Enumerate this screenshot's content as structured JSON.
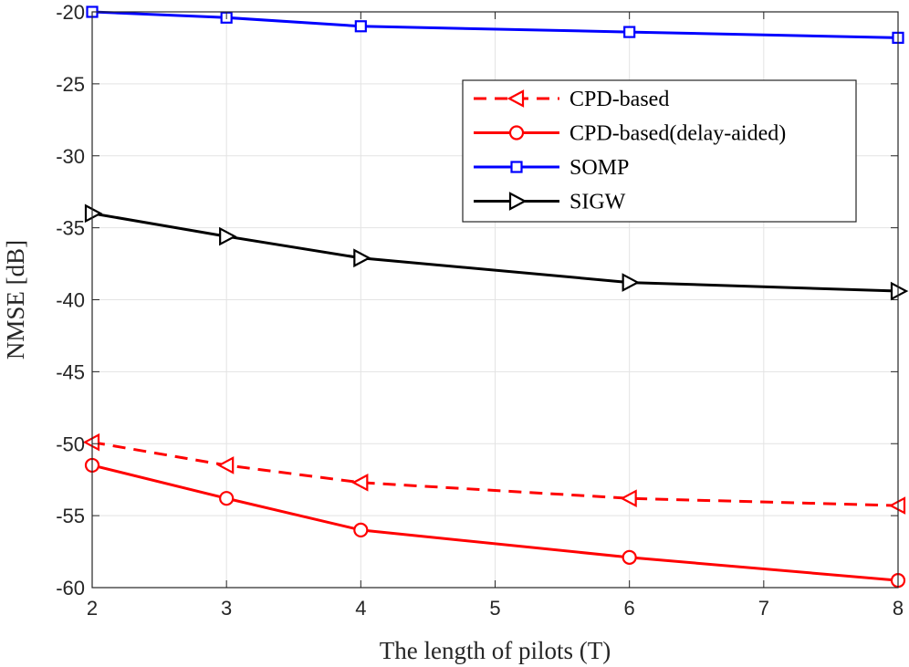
{
  "chart_data": {
    "type": "line",
    "title": "",
    "xlabel": "The length of pilots (T)",
    "ylabel": "NMSE [dB]",
    "xlim": [
      2,
      8
    ],
    "ylim": [
      -60,
      -20
    ],
    "x_ticks": [
      2,
      3,
      4,
      5,
      6,
      7,
      8
    ],
    "y_ticks": [
      -60,
      -55,
      -50,
      -45,
      -40,
      -35,
      -30,
      -25,
      -20
    ],
    "grid": true,
    "legend_position": "top-right",
    "x": [
      2,
      3,
      4,
      6,
      8
    ],
    "series": [
      {
        "name": "CPD-based",
        "color": "#ff0000",
        "dash": "dashed",
        "marker": "triangle-left",
        "values": [
          -49.9,
          -51.5,
          -52.7,
          -53.8,
          -54.3
        ]
      },
      {
        "name": "CPD-based(delay-aided)",
        "color": "#ff0000",
        "dash": "solid",
        "marker": "circle",
        "values": [
          -51.5,
          -53.8,
          -56.0,
          -57.9,
          -59.5
        ]
      },
      {
        "name": "SOMP",
        "color": "#0000ff",
        "dash": "solid",
        "marker": "square",
        "values": [
          -20.0,
          -20.4,
          -21.0,
          -21.4,
          -21.8
        ]
      },
      {
        "name": "SIGW",
        "color": "#000000",
        "dash": "solid",
        "marker": "triangle-right",
        "values": [
          -34.0,
          -35.6,
          -37.1,
          -38.8,
          -39.4
        ]
      }
    ]
  }
}
